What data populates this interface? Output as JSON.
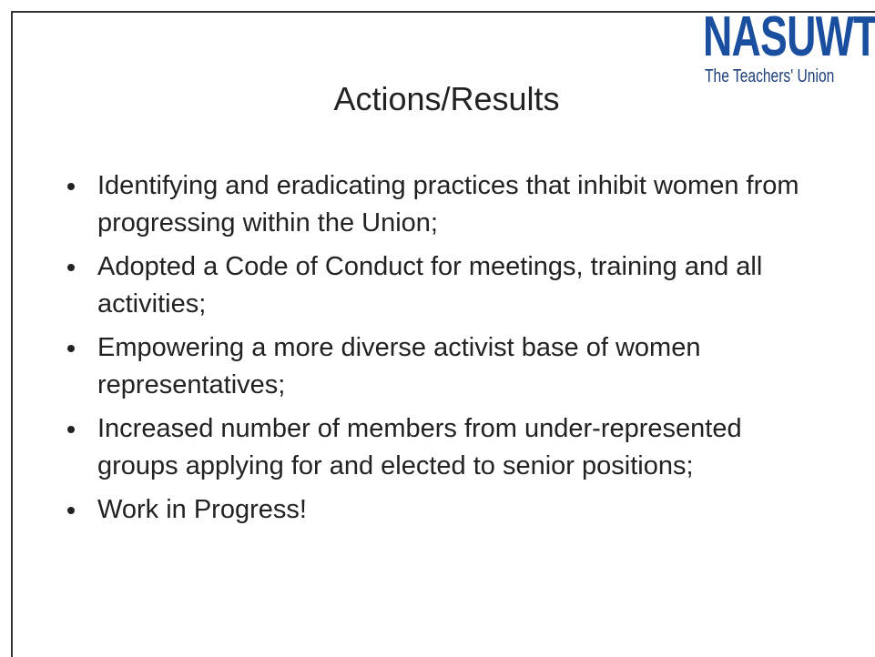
{
  "logo": {
    "name": "NASUWT",
    "tagline": "The Teachers' Union"
  },
  "title": "Actions/Results",
  "bullets": [
    "Identifying and eradicating practices that inhibit women from progressing within the Union;",
    "Adopted a Code of Conduct for meetings, training and all activities;",
    "Empowering a more diverse activist base of women representatives;",
    "Increased number of members from under-represented groups applying for and elected to senior positions;",
    "Work in Progress!"
  ]
}
